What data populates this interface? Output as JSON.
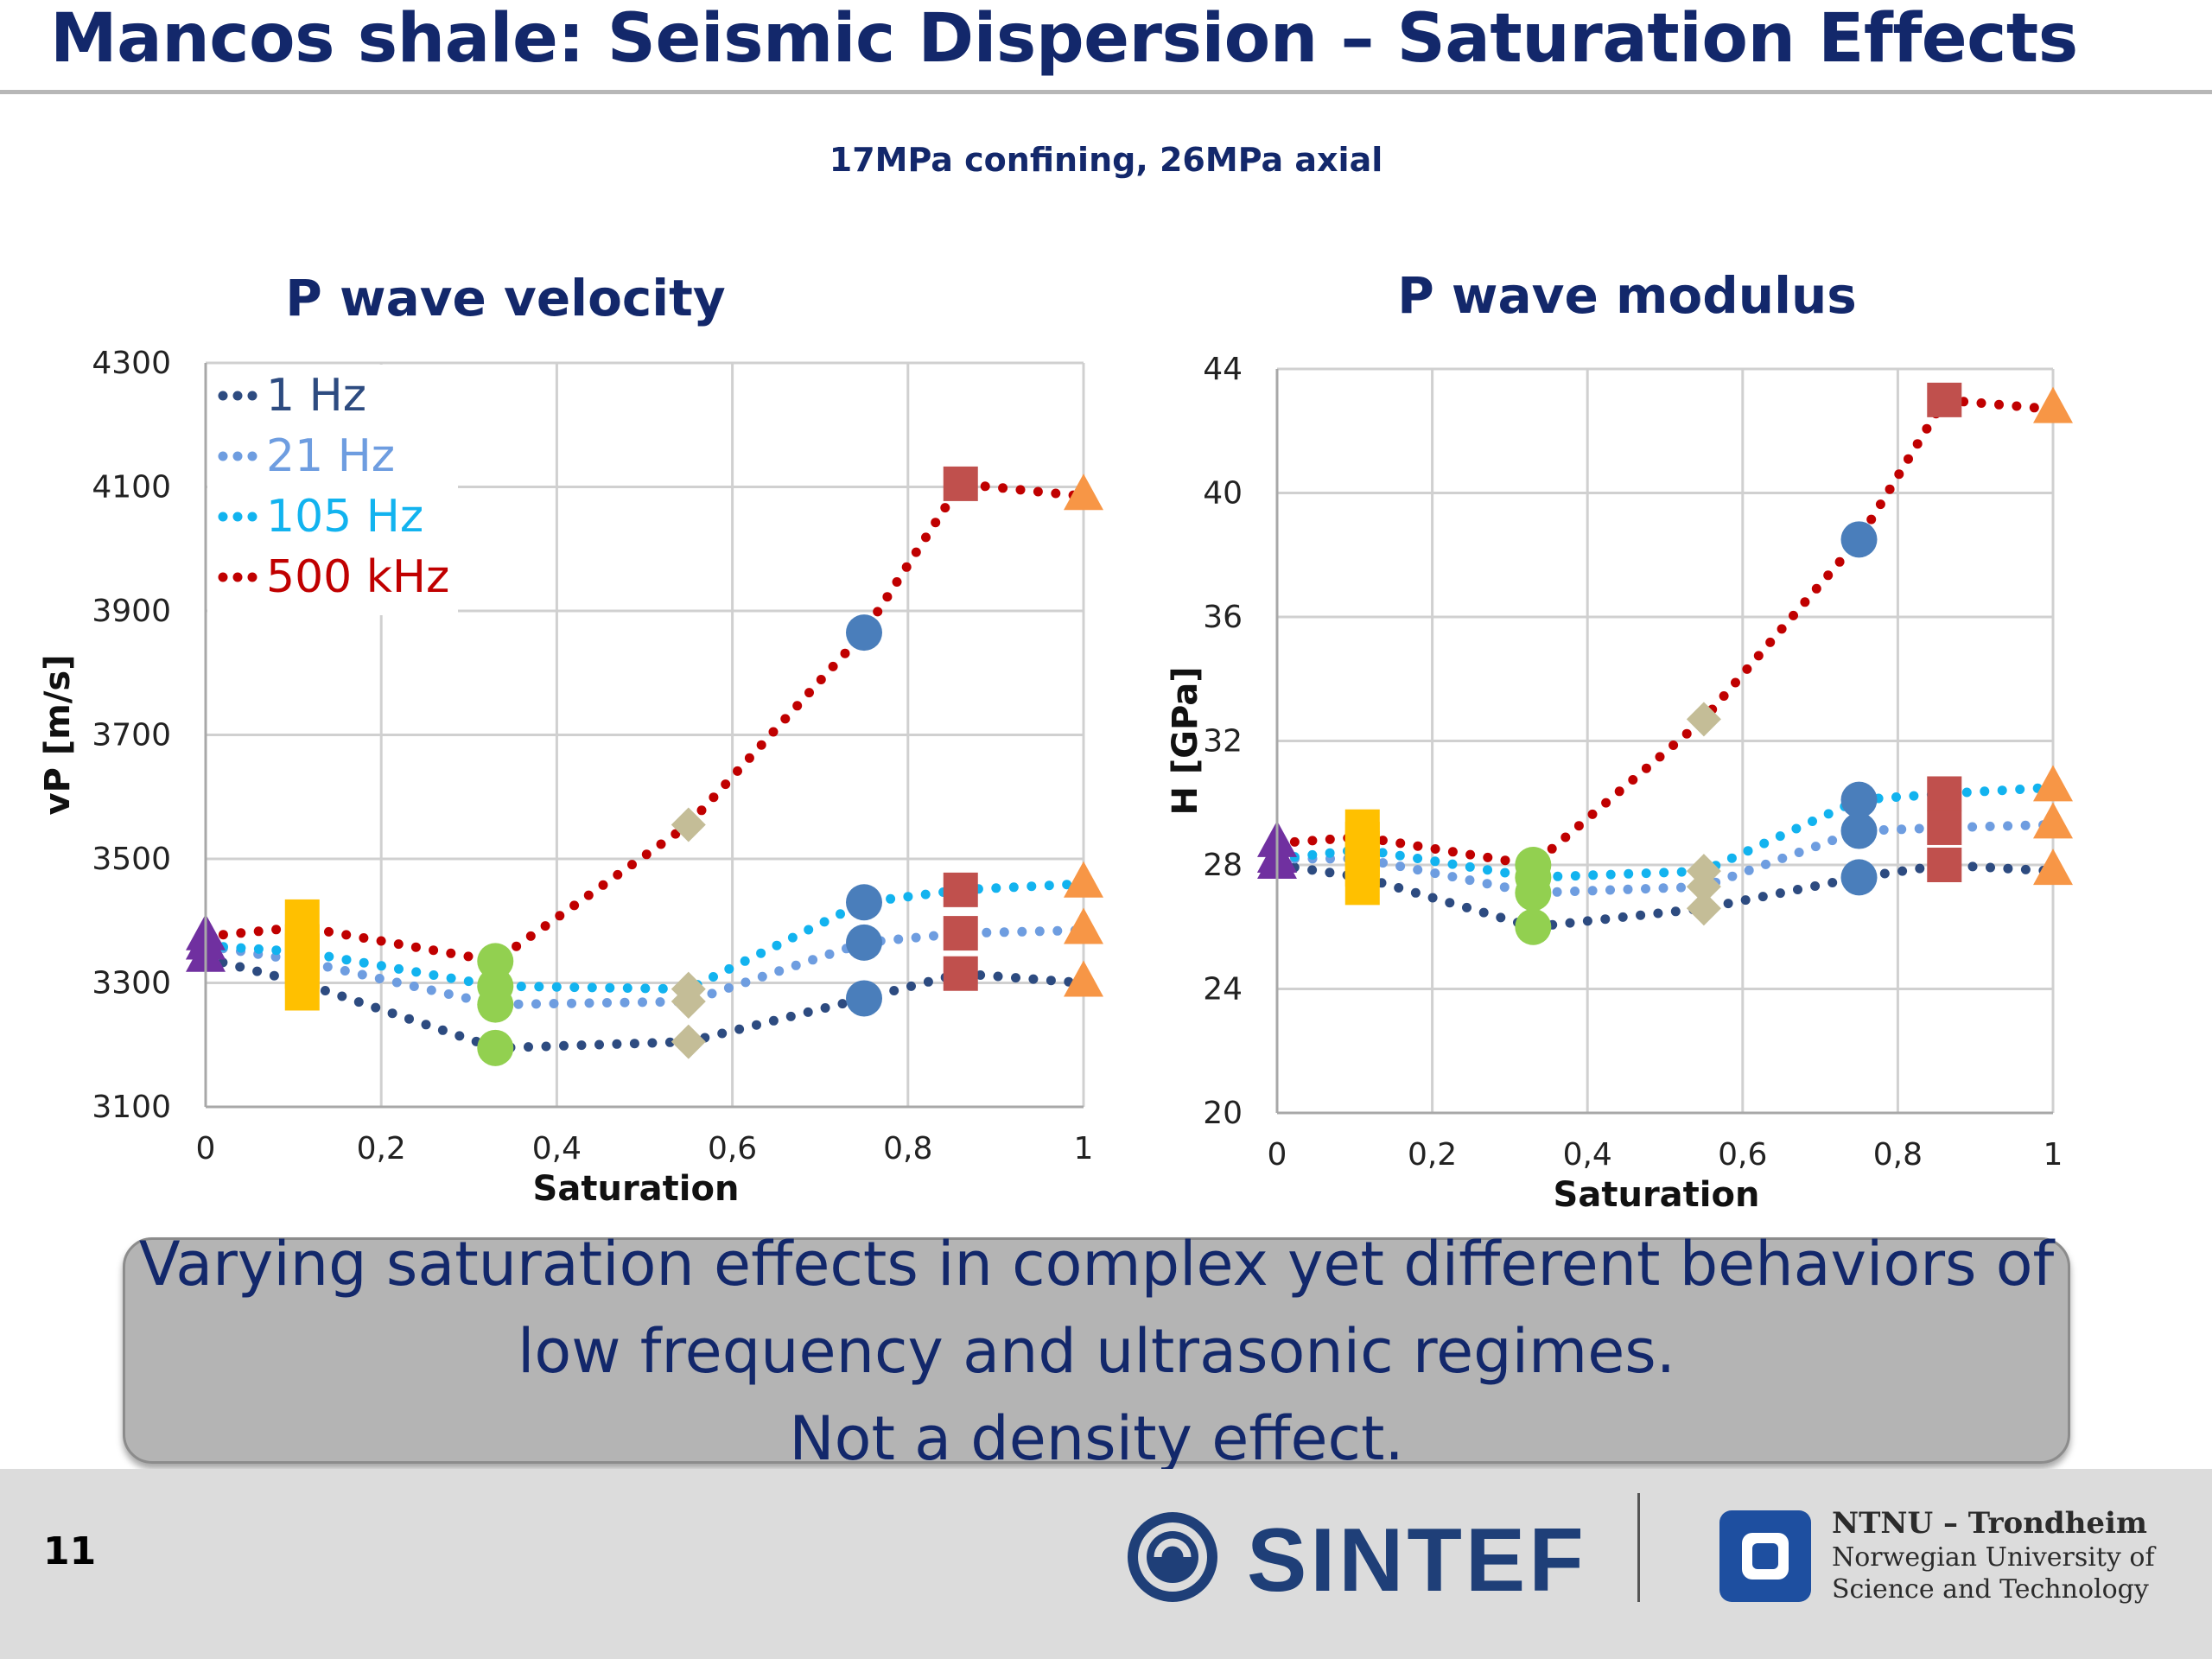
{
  "slide": {
    "title": "Mancos shale: Seismic Dispersion – Saturation Effects",
    "subtitle": "17MPa confining, 26MPa axial",
    "page_number": "11"
  },
  "callout": {
    "line1": "Varying saturation effects in complex yet different behaviors of",
    "line2": "low frequency and ultrasonic regimes.",
    "line3": "Not a density effect."
  },
  "logos": {
    "sintef": "SINTEF",
    "ntnu_line1": "NTNU – Trondheim",
    "ntnu_line2": "Norwegian University of",
    "ntnu_line3": "Science and Technology"
  },
  "colors": {
    "title": "#13286b",
    "1 Hz": "#2d4b80",
    "21 Hz": "#6e9de0",
    "105 Hz": "#12b3ef",
    "500 kHz": "#c00000",
    "marker_purple": "#7030a0",
    "marker_yellow": "#ffc000",
    "marker_green": "#92d050",
    "marker_tan": "#c4bd97",
    "marker_blue": "#4a7ebb",
    "marker_red": "#c0504d",
    "marker_orange": "#f79646"
  },
  "chart_data": [
    {
      "type": "line",
      "title": "P wave velocity",
      "xlabel": "Saturation",
      "ylabel": "vP [m/s]",
      "xlim": [
        0,
        1
      ],
      "ylim": [
        3100,
        4300
      ],
      "x_ticks": [
        "0",
        "0,2",
        "0,4",
        "0,6",
        "0,8",
        "1"
      ],
      "y_ticks": [
        "3100",
        "3300",
        "3500",
        "3700",
        "3900",
        "4100",
        "4300"
      ],
      "grid": true,
      "legend": "top-left",
      "x": [
        0,
        0.11,
        0.33,
        0.55,
        0.75,
        0.86,
        1
      ],
      "series": [
        {
          "name": "1 Hz",
          "values": [
            3340,
            3300,
            3195,
            3205,
            3275,
            3315,
            3300
          ]
        },
        {
          "name": "21 Hz",
          "values": [
            3360,
            3335,
            3265,
            3270,
            3365,
            3380,
            3385
          ]
        },
        {
          "name": "105 Hz",
          "values": [
            3360,
            3350,
            3295,
            3290,
            3430,
            3450,
            3460
          ]
        },
        {
          "name": "500 kHz",
          "values": [
            3375,
            3390,
            3335,
            3555,
            3865,
            4105,
            4085
          ]
        }
      ],
      "marker_colors": [
        "#7030a0",
        "#ffc000",
        "#92d050",
        "#c4bd97",
        "#4a7ebb",
        "#c0504d",
        "#f79646"
      ],
      "marker_shapes": [
        "triangle",
        "rect",
        "circle",
        "diamond",
        "circle",
        "square",
        "triangle"
      ]
    },
    {
      "type": "line",
      "title": "P wave modulus",
      "xlabel": "Saturation",
      "ylabel": "H [GPa]",
      "xlim": [
        0,
        1
      ],
      "ylim": [
        20,
        44
      ],
      "x_ticks": [
        "0",
        "0,2",
        "0,4",
        "0,6",
        "0,8",
        "1"
      ],
      "y_ticks": [
        "20",
        "24",
        "28",
        "32",
        "36",
        "40",
        "44"
      ],
      "grid": true,
      "x": [
        0,
        0.11,
        0.33,
        0.55,
        0.75,
        0.86,
        1
      ],
      "series": [
        {
          "name": "1 Hz",
          "values": [
            28,
            27.6,
            26,
            26.6,
            27.6,
            28,
            27.8
          ]
        },
        {
          "name": "21 Hz",
          "values": [
            28.2,
            28.2,
            27.1,
            27.3,
            29.1,
            29.2,
            29.3
          ]
        },
        {
          "name": "105 Hz",
          "values": [
            28.2,
            28.5,
            27.6,
            27.8,
            30.1,
            30.3,
            30.5
          ]
        },
        {
          "name": "500 kHz",
          "values": [
            28.7,
            28.9,
            28,
            32.7,
            38.5,
            43,
            42.7
          ]
        }
      ],
      "marker_colors": [
        "#7030a0",
        "#ffc000",
        "#92d050",
        "#c4bd97",
        "#4a7ebb",
        "#c0504d",
        "#f79646"
      ],
      "marker_shapes": [
        "triangle",
        "rect",
        "circle",
        "diamond",
        "circle",
        "square",
        "triangle"
      ]
    }
  ]
}
